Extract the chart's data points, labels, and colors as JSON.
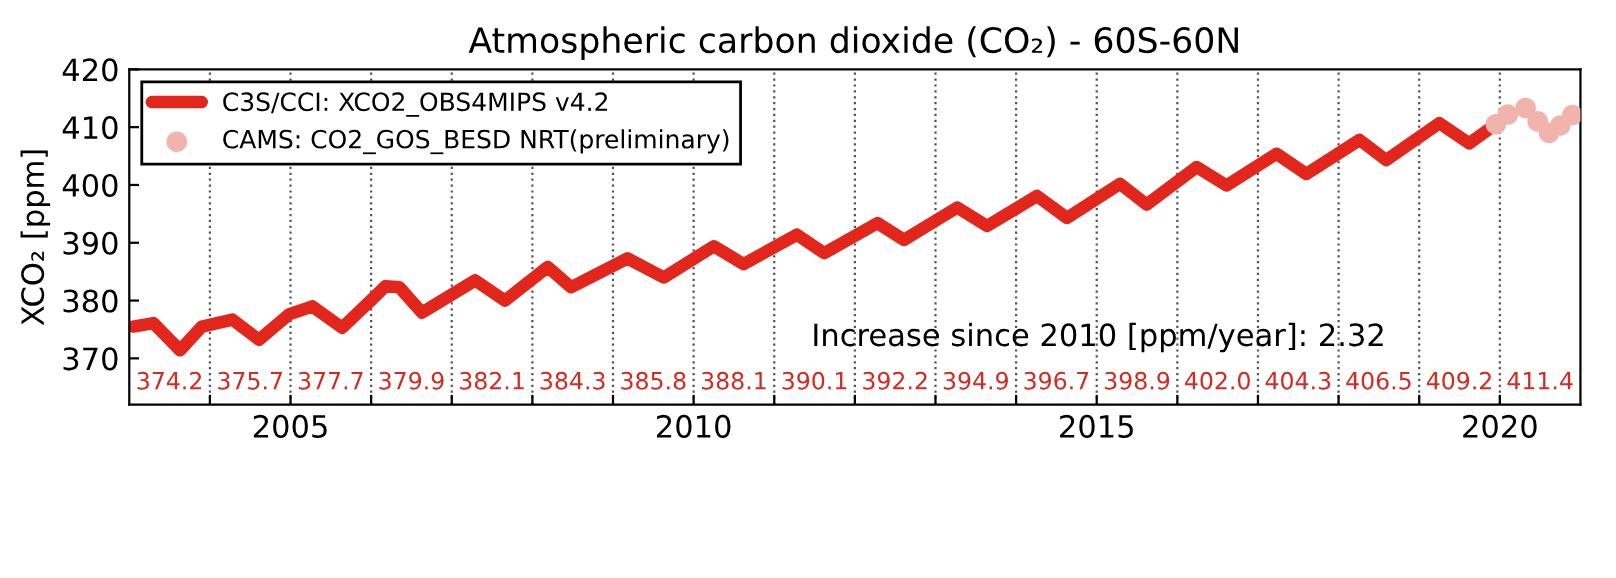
{
  "chart_data": {
    "type": "line",
    "title": "Atmospheric carbon dioxide (CO₂) - 60S-60N",
    "ylabel": "XCO₂ [ppm]",
    "xlim": [
      2003,
      2021
    ],
    "ylim": [
      362,
      420
    ],
    "xticks": [
      {
        "value": 2004,
        "label": null
      },
      2005,
      {
        "value": 2006,
        "label": null
      },
      {
        "value": 2007,
        "label": null
      },
      {
        "value": 2008,
        "label": null
      },
      {
        "value": 2009,
        "label": null
      },
      2010,
      {
        "value": 2011,
        "label": null
      },
      {
        "value": 2012,
        "label": null
      },
      {
        "value": 2013,
        "label": null
      },
      {
        "value": 2014,
        "label": null
      },
      2015,
      {
        "value": 2016,
        "label": null
      },
      {
        "value": 2017,
        "label": null
      },
      {
        "value": 2018,
        "label": null
      },
      {
        "value": 2019,
        "label": null
      },
      2020
    ],
    "yticks": [
      370,
      380,
      390,
      400,
      410,
      420
    ],
    "grid": "x",
    "legend": "top left",
    "series": [
      {
        "name": "C3S/CCI: XCO2_OBS4MIPS v4.2",
        "color": "#e3261c",
        "line_style": "solid",
        "marker": "none",
        "x": [
          2003.05,
          2003.3,
          2003.63,
          2003.9,
          2004.28,
          2004.61,
          2004.98,
          2005.27,
          2005.64,
          2006.01,
          2006.18,
          2006.35,
          2006.63,
          2007.29,
          2007.66,
          2008.19,
          2008.48,
          2009.18,
          2009.63,
          2010.25,
          2010.62,
          2011.28,
          2011.62,
          2012.28,
          2012.61,
          2013.27,
          2013.64,
          2014.26,
          2014.63,
          2015.29,
          2015.62,
          2016.24,
          2016.61,
          2017.23,
          2017.6,
          2018.26,
          2018.59,
          2019.25,
          2019.62,
          2019.95
        ],
        "values": [
          375.5,
          376.1,
          371.4,
          375.5,
          376.7,
          373.2,
          377.6,
          379.0,
          375.3,
          380.2,
          382.5,
          382.3,
          377.9,
          383.5,
          380.0,
          385.8,
          382.3,
          387.3,
          384.0,
          389.4,
          386.3,
          391.4,
          388.2,
          393.4,
          390.5,
          396.1,
          392.9,
          398.1,
          394.3,
          400.2,
          396.6,
          403.1,
          399.9,
          405.4,
          401.9,
          407.8,
          404.3,
          410.7,
          407.2,
          410.5
        ]
      },
      {
        "name": "CAMS: CO2_GOS_BESD NRT(preliminary)",
        "type": "scatter",
        "color": "#f2b3ad",
        "marker": "circle",
        "x": [
          2019.95,
          2020.1,
          2020.32,
          2020.47,
          2020.61,
          2020.75,
          2020.9
        ],
        "values": [
          410.5,
          412.2,
          413.3,
          411.0,
          409.0,
          410.3,
          412.1
        ]
      }
    ],
    "annotations": [
      "374.2",
      "375.7",
      "377.7",
      "379.9",
      "382.1",
      "384.3",
      "385.8",
      "388.1",
      "390.1",
      "392.2",
      "394.9",
      "396.7",
      "398.9",
      "402.0",
      "404.3",
      "406.5",
      "409.2",
      "411.4",
      "Increase since 2010 [ppm/year]: 2.32"
    ]
  }
}
